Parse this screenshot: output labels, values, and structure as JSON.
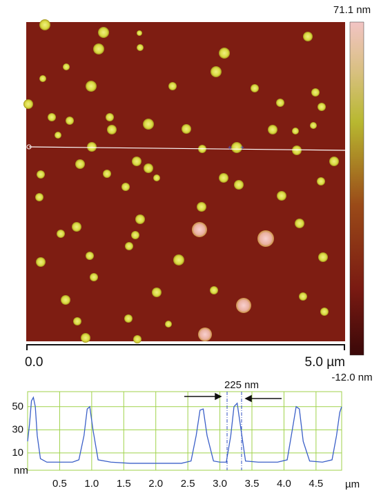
{
  "image": {
    "colorbar_max": "71.1 nm",
    "colorbar_min": "-12.0 nm",
    "scale_start": "0.0",
    "scale_end": "5.0  µm"
  },
  "chart_data": {
    "type": "line",
    "annotation": "225 nm",
    "y_unit": "nm",
    "x_unit": "µm",
    "color": "#3a5fc8",
    "x": [
      0,
      0.03,
      0.06,
      0.09,
      0.12,
      0.15,
      0.2,
      0.3,
      0.5,
      0.7,
      0.8,
      0.88,
      0.93,
      0.97,
      1.02,
      1.1,
      1.3,
      1.6,
      2.0,
      2.4,
      2.55,
      2.63,
      2.69,
      2.74,
      2.8,
      2.9,
      3.0,
      3.1,
      3.17,
      3.22,
      3.27,
      3.33,
      3.4,
      3.6,
      3.9,
      4.05,
      4.13,
      4.19,
      4.24,
      4.3,
      4.4,
      4.6,
      4.75,
      4.82,
      4.87,
      4.9
    ],
    "values": [
      20,
      35,
      55,
      58,
      50,
      25,
      5,
      2,
      2,
      2,
      4,
      25,
      48,
      50,
      30,
      4,
      2,
      1,
      1,
      1,
      3,
      25,
      47,
      48,
      25,
      3,
      2,
      2,
      25,
      50,
      53,
      30,
      3,
      2,
      2,
      4,
      30,
      50,
      48,
      20,
      3,
      2,
      4,
      25,
      45,
      50
    ],
    "xlim": [
      0,
      4.9
    ],
    "ylim": [
      -5,
      63
    ],
    "xticks": [
      0.5,
      {
        "value": 1,
        "label": "1.0"
      },
      1.5,
      {
        "value": 2,
        "label": "2.0"
      },
      2.5,
      {
        "value": 3,
        "label": "3.0"
      },
      3.5,
      {
        "value": 4,
        "label": "4.0"
      },
      4.5
    ],
    "yticks": [
      10,
      30,
      50
    ],
    "grid": true
  }
}
